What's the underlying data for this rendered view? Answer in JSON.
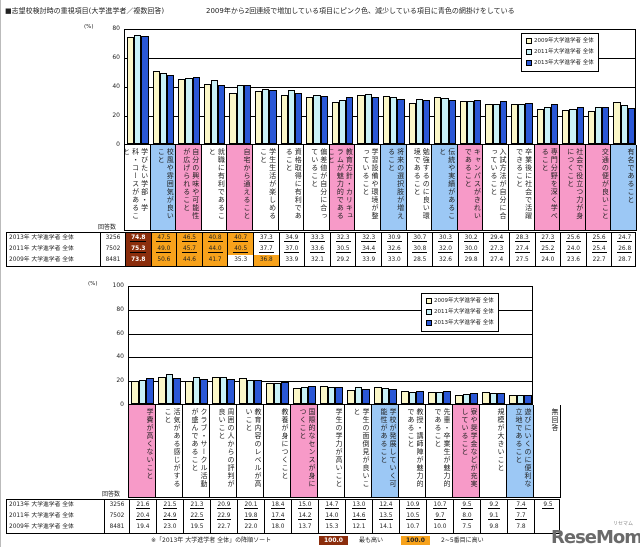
{
  "header": {
    "title": "■志望校検討時の重視項目(大学進学者／複数回答)",
    "subtitle": "2009年から2回連続で増加している項目にピンク色、減少している項目に青色の網掛けをしている"
  },
  "colors": {
    "y2009": "#fbf7c8",
    "y2011": "#c9f1f7",
    "y2013": "#2a57d6",
    "pink": "#f79ac8",
    "blue": "#9cc8f5",
    "top": "#8b2d0c",
    "orange": "#f7a21b"
  },
  "legend": [
    "2009年大学進学者 全体",
    "2011年大学進学者 全体",
    "2013年大学進学者 全体"
  ],
  "respondents_label": "回答数",
  "unit": "(%)",
  "rows": [
    {
      "label": "2013年 大学進学者 全体",
      "n": "3256"
    },
    {
      "label": "2011年 大学進学者 全体",
      "n": "7502"
    },
    {
      "label": "2009年 大学進学者 全体",
      "n": "8481"
    }
  ],
  "footnote": {
    "note": "※「2013年 大学進学者 全体」の降順ソート",
    "top_sample": "100.0",
    "top_text": "最も高い",
    "orange_sample": "100.0",
    "orange_text": "2~5番目に高い"
  },
  "logo": "ReseMom",
  "logo_sub": "リセマム",
  "chart_data": [
    {
      "type": "bar",
      "title": "志望校検討時の重視項目(大学進学者／複数回答)",
      "ylabel": "(%)",
      "ylim": [
        0,
        80
      ],
      "yticks": [
        "0",
        "20",
        "40",
        "60",
        "80"
      ],
      "legend_position": "top-right",
      "categories": [
        "学びたい学部・学科・コースがあること",
        "校風や雰囲気が良いこと",
        "自分の興味や可能性が広げられること",
        "就職に有利であること",
        "自宅から通えること",
        "学生生活が楽しめること",
        "資格取得に有利であること",
        "偏差値が自分に合っていること",
        "教育方針・カリキュラムが魅力的であること",
        "学習設備や環境が整っていること",
        "将来の選択肢が増えること",
        "勉強するのに良い環境であること",
        "伝統や実績があること",
        "キャンパスがきれいであること",
        "入試方法が自分に合っていること",
        "卒業後に社会で活躍できること",
        "専門分野を深く学べること",
        "社会で役立つ力が身につくこと",
        "交通の便が良いこと",
        "有名であること"
      ],
      "shade": [
        "",
        "blue",
        "pink",
        "",
        "pink",
        "",
        "",
        "",
        "pink",
        "",
        "blue",
        "",
        "blue",
        "pink",
        "",
        "",
        "pink",
        "pink",
        "pink",
        "blue"
      ],
      "series": [
        {
          "name": "2013年大学進学者 全体",
          "values": [
            74.8,
            47.5,
            46.5,
            40.8,
            40.7,
            37.3,
            34.9,
            33.3,
            32.3,
            32.3,
            30.9,
            30.7,
            30.3,
            30.2,
            29.4,
            28.3,
            27.3,
            25.6,
            25.6,
            24.7
          ],
          "highlight": [
            "top",
            "orange",
            "orange",
            "orange",
            "orange",
            "",
            "",
            "",
            "",
            "",
            "",
            "",
            "",
            "",
            "",
            "",
            "",
            "",
            "",
            ""
          ]
        },
        {
          "name": "2011年大学進学者 全体",
          "values": [
            75.3,
            49.0,
            45.7,
            44.0,
            40.5,
            37.7,
            37.0,
            33.6,
            30.5,
            34.4,
            32.6,
            30.8,
            32.0,
            30.0,
            27.3,
            27.4,
            25.2,
            24.0,
            25.4,
            26.8
          ],
          "highlight": [
            "top",
            "orange",
            "orange",
            "orange",
            "orange",
            "",
            "",
            "",
            "",
            "",
            "",
            "",
            "",
            "",
            "",
            "",
            "",
            "",
            "",
            ""
          ]
        },
        {
          "name": "2009年大学進学者 全体",
          "values": [
            73.8,
            50.6,
            44.6,
            41.7,
            35.3,
            36.8,
            33.9,
            32.1,
            29.2,
            33.9,
            33.0,
            28.5,
            32.6,
            29.8,
            27.4,
            27.5,
            24.0,
            23.6,
            22.7,
            28.7
          ],
          "highlight": [
            "top",
            "orange",
            "orange",
            "orange",
            "",
            "orange",
            "",
            "",
            "",
            "",
            "",
            "",
            "",
            "",
            "",
            "",
            "",
            "",
            "",
            ""
          ]
        }
      ]
    },
    {
      "type": "bar",
      "ylabel": "(%)",
      "ylim": [
        0,
        100
      ],
      "yticks": [
        "0",
        "20",
        "40",
        "60",
        "80",
        "100"
      ],
      "legend_position": "top-right",
      "categories": [
        "学費が高くないこと",
        "活気がある感じがすること",
        "クラブ・サークル活動が盛んであること",
        "周囲の人からの評判が良いこと",
        "教育内容のレベルが高いこと",
        "教養が身につくこと",
        "国際的なセンスが身につくこと",
        "学生の学力が高いこと",
        "学生の面倒見が良いこと",
        "学校が発展していく可能性があること",
        "教授・講師陣が魅力的であること",
        "先輩・卒業生が魅力的であること",
        "寮や奨学金などが充実していること",
        "規模が大きいこと",
        "遊びにいくのに便利な立地であること",
        "無回答"
      ],
      "shade": [
        "pink",
        "",
        "",
        "",
        "",
        "",
        "pink",
        "",
        "",
        "blue",
        "",
        "",
        "pink",
        "",
        "blue",
        ""
      ],
      "series": [
        {
          "name": "2013年大学進学者 全体",
          "values": [
            21.6,
            21.5,
            21.3,
            20.9,
            20.1,
            18.4,
            15.0,
            14.7,
            13.0,
            12.4,
            10.9,
            10.7,
            9.5,
            9.2,
            7.4,
            9.5
          ]
        },
        {
          "name": "2011年大学進学者 全体",
          "values": [
            20.4,
            24.9,
            22.5,
            22.9,
            19.8,
            17.4,
            14.2,
            14.0,
            14.6,
            13.5,
            10.5,
            9.7,
            8.0,
            9.1,
            7.7,
            null
          ]
        },
        {
          "name": "2009年大学進学者 全体",
          "values": [
            19.4,
            23.0,
            19.5,
            22.7,
            22.0,
            18.0,
            13.7,
            15.3,
            12.1,
            14.1,
            10.7,
            10.0,
            7.5,
            9.8,
            7.8,
            null
          ]
        }
      ]
    }
  ]
}
